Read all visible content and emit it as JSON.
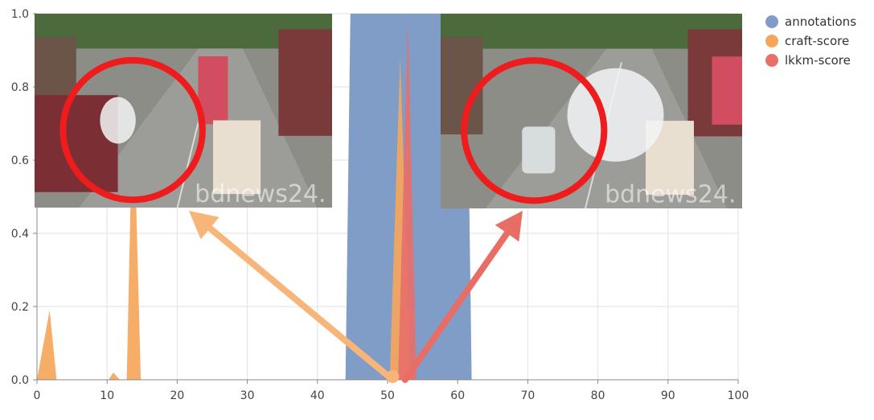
{
  "chart_data": {
    "type": "area",
    "xlim": [
      0,
      100
    ],
    "ylim": [
      0,
      1.0
    ],
    "x_ticks": [
      0,
      10,
      20,
      30,
      40,
      50,
      60,
      70,
      80,
      90,
      100
    ],
    "y_ticks": [
      0.0,
      0.2,
      0.4,
      0.6,
      0.8,
      1.0
    ],
    "x_tick_labels": [
      "0",
      "10",
      "20",
      "30",
      "40",
      "50",
      "60",
      "70",
      "80",
      "90",
      "100"
    ],
    "y_tick_labels": [
      "0.0",
      "0.2",
      "0.4",
      "0.6",
      "0.8",
      "1.0"
    ],
    "grid": true,
    "legend_position": "top-right",
    "series": [
      {
        "name": "annotations",
        "color": "#7f9dc6",
        "x": [
          44,
          44.7,
          61.3,
          62
        ],
        "y": [
          0,
          1.0,
          1.0,
          0
        ]
      },
      {
        "name": "craft-score",
        "color": "#f5a65b",
        "x": [
          0,
          1.8,
          2.8,
          10.2,
          10.9,
          11.8,
          12.8,
          13.7,
          14.8,
          50.3,
          51.8,
          53.3
        ],
        "y": [
          0,
          0.19,
          0,
          0,
          0.02,
          0,
          0,
          0.8,
          0,
          0,
          0.88,
          0
        ]
      },
      {
        "name": "lkkm-score",
        "color": "#e87069",
        "x": [
          51.5,
          52.9,
          54.1
        ],
        "y": [
          0,
          0.98,
          0
        ]
      }
    ],
    "annotations": [
      {
        "type": "inset-image",
        "description": "traffic camera frame, white smoke near bus",
        "watermark": "bdnews24.",
        "arrow_to_x": 50.5,
        "arrow_color": "#f8b57a"
      },
      {
        "type": "inset-image",
        "description": "traffic camera frame, auto-rickshaw in smoke",
        "watermark": "bdnews24.",
        "arrow_to_x": 52.5,
        "arrow_color": "#e86e65"
      }
    ]
  }
}
